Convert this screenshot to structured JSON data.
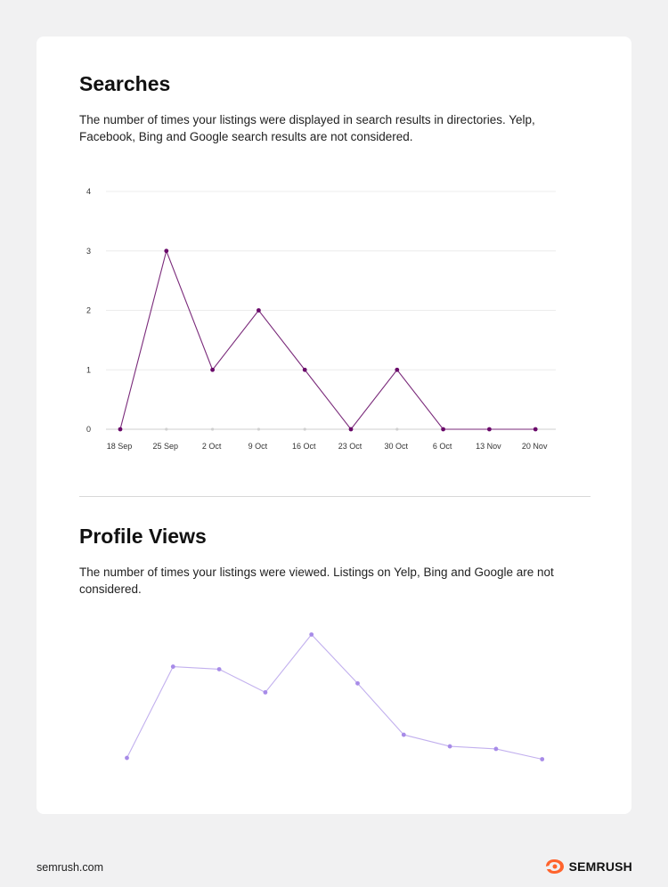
{
  "searches": {
    "title": "Searches",
    "description": "The number of times your listings were displayed in search results in directories. Yelp, Facebook, Bing and Google search results are not considered."
  },
  "profile_views": {
    "title": "Profile Views",
    "description": "The number of times your listings were viewed. Listings on Yelp, Bing and Google are not considered."
  },
  "footer": {
    "url": "semrush.com",
    "brand": "SEMRUSH"
  },
  "colors": {
    "searches_line": "#7a2a7a",
    "searches_point": "#6a0a6a",
    "views_line": "#c2b0ee",
    "views_point": "#a78be8",
    "brand_orange": "#ff642d"
  },
  "chart_data": [
    {
      "type": "line",
      "categories": [
        "18 Sep",
        "25 Sep",
        "2 Oct",
        "9 Oct",
        "16 Oct",
        "23 Oct",
        "30 Oct",
        "6 Oct",
        "13 Nov",
        "20 Nov"
      ],
      "values": [
        0,
        3,
        1,
        2,
        1,
        0,
        1,
        0,
        0,
        0
      ],
      "y_ticks": [
        "0",
        "1",
        "2",
        "3",
        "4"
      ],
      "ylim": [
        0,
        4
      ],
      "grid": true
    },
    {
      "type": "line",
      "values": [
        0.1,
        7.2,
        7.0,
        5.2,
        9.7,
        5.9,
        1.9,
        1.0,
        0.8,
        0
      ]
    }
  ]
}
